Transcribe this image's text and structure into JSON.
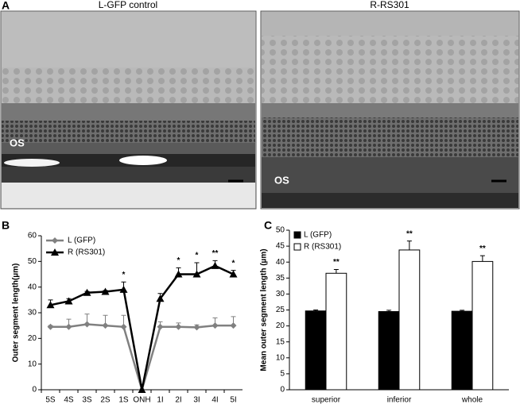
{
  "panels": {
    "a": {
      "letter": "A",
      "left_title": "L-GFP control",
      "right_title": "R-RS301",
      "left_label": "OS",
      "right_label": "OS"
    },
    "b": {
      "letter": "B"
    },
    "c": {
      "letter": "C"
    }
  },
  "chart_data": [
    {
      "type": "line",
      "y_label": "Outer segment length(µm)",
      "categories": [
        "5S",
        "4S",
        "3S",
        "2S",
        "1S",
        "ONH",
        "1I",
        "2I",
        "3I",
        "4I",
        "5I"
      ],
      "ylim": [
        0,
        60
      ],
      "yticks": [
        0,
        10,
        20,
        30,
        40,
        50,
        60
      ],
      "legend": "upper left",
      "series": [
        {
          "name": "L (GFP)",
          "color": "#808080",
          "marker": "diamond",
          "values": [
            24.5,
            24.5,
            25.5,
            25,
            24.5,
            0,
            24.5,
            24.5,
            24.3,
            25,
            25
          ],
          "errors": [
            0.5,
            3,
            4,
            4,
            4.5,
            0,
            2,
            1.5,
            1,
            3,
            3.5
          ]
        },
        {
          "name": "R (RS301)",
          "color": "#000000",
          "marker": "triangle",
          "values": [
            33,
            34.5,
            37.8,
            38.2,
            39,
            0,
            35.5,
            45,
            45,
            48.3,
            45
          ],
          "errors": [
            2,
            1,
            0.5,
            0.5,
            3,
            0,
            2,
            2.5,
            4.5,
            2,
            1.5
          ],
          "annotations": [
            null,
            null,
            null,
            null,
            "*",
            null,
            null,
            "*",
            "*",
            "**",
            "*"
          ]
        }
      ]
    },
    {
      "type": "bar",
      "y_label": "Mean outer segment length (µm)",
      "categories": [
        "superior",
        "inferior",
        "whole"
      ],
      "ylim": [
        0,
        50
      ],
      "yticks": [
        0,
        5,
        10,
        15,
        20,
        25,
        30,
        35,
        40,
        45,
        50
      ],
      "legend": "upper left",
      "series": [
        {
          "name": "L (GFP)",
          "color": "#000000",
          "values": [
            24.7,
            24.5,
            24.6
          ],
          "errors": [
            0.3,
            0.4,
            0.3
          ]
        },
        {
          "name": "R (RS301)",
          "color": "#ffffff",
          "values": [
            36.5,
            43.8,
            40.2
          ],
          "errors": [
            1.2,
            2.8,
            1.8
          ],
          "annotations": [
            "**",
            "**",
            "**"
          ]
        }
      ]
    }
  ]
}
